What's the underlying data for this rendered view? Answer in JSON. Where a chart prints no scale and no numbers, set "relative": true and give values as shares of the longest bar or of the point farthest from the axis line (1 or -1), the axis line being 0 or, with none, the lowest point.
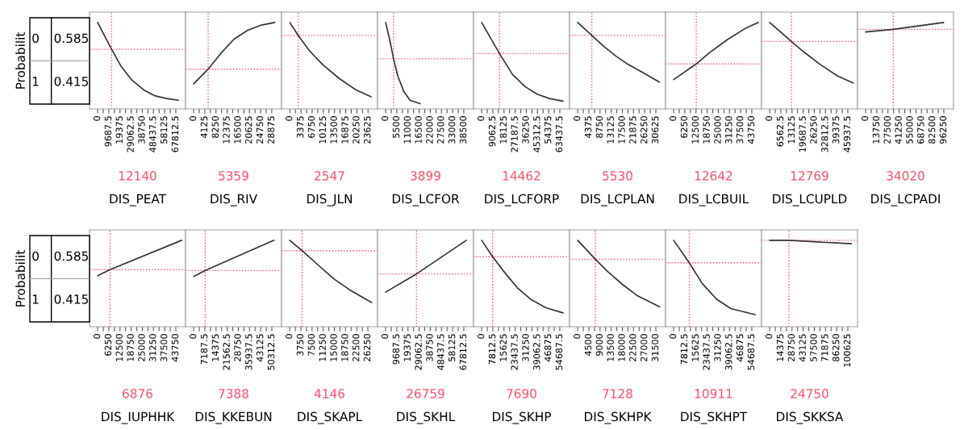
{
  "chart_data": [
    {
      "type": "other",
      "ylabel": "Probabilit",
      "annotations": [
        "0",
        "1",
        "0.585",
        "0.415"
      ]
    },
    {
      "type": "line",
      "xlabel": "DIS_PEAT",
      "color": "#333333",
      "x": [
        0,
        12140,
        20000,
        30000,
        40000,
        50000,
        60000,
        70000
      ],
      "values": [
        1,
        0.69,
        0.5,
        0.33,
        0.22,
        0.15,
        0.12,
        0.1
      ],
      "relative": true,
      "xlim": [
        -7000,
        76250
      ],
      "xticks": [
        0,
        {
          "value": 4843.75,
          "label": null
        },
        9687.5,
        {
          "value": 14531.25,
          "label": null
        },
        19375,
        {
          "value": 24218.75,
          "label": null
        },
        29062.5,
        {
          "value": 33906.25,
          "label": null
        },
        38750,
        {
          "value": 43593.75,
          "label": null
        },
        48437.5,
        {
          "value": 53281.25,
          "label": null
        },
        58125,
        {
          "value": 62968.75,
          "label": null
        },
        67812.5
      ],
      "tick_labels": "x",
      "ref_lines": [
        {
          "axis": "x",
          "value": 12140,
          "label": "12140",
          "color": "#ff4d6a",
          "line_style": "dotted"
        },
        {
          "axis": "y",
          "value": 0.69,
          "color": "#ff4d6a",
          "line_style": "dotted"
        }
      ]
    },
    {
      "type": "line",
      "xlabel": "DIS_RIV",
      "color": "#333333",
      "x": [
        0,
        5359,
        10000,
        15000,
        20000,
        25000,
        30000
      ],
      "values": [
        0.29,
        0.46,
        0.64,
        0.81,
        0.91,
        0.97,
        1
      ],
      "relative": true,
      "xlim": [
        -3000,
        32500
      ],
      "xticks": [
        0,
        {
          "value": 2062.5,
          "label": null
        },
        4125,
        {
          "value": 6187.5,
          "label": null
        },
        8250,
        {
          "value": 10312.5,
          "label": null
        },
        12375,
        {
          "value": 14437.5,
          "label": null
        },
        16500,
        {
          "value": 18562.5,
          "label": null
        },
        20625,
        {
          "value": 22687.5,
          "label": null
        },
        24750,
        {
          "value": 26812.5,
          "label": null
        },
        28875
      ],
      "tick_labels": "x",
      "ref_lines": [
        {
          "axis": "x",
          "value": 5359,
          "label": "5359",
          "color": "#ff4d6a",
          "line_style": "dotted"
        },
        {
          "axis": "y",
          "value": 0.46,
          "color": "#ff4d6a",
          "line_style": "dotted"
        }
      ]
    },
    {
      "type": "line",
      "xlabel": "DIS_JLN",
      "color": "#333333",
      "x": [
        0,
        2547,
        6000,
        10000,
        15000,
        20000,
        24600
      ],
      "values": [
        1,
        0.85,
        0.67,
        0.51,
        0.35,
        0.22,
        0.14
      ],
      "relative": true,
      "xlim": [
        -2500,
        26500
      ],
      "xticks": [
        0,
        {
          "value": 1687.5,
          "label": null
        },
        3375,
        {
          "value": 5062.5,
          "label": null
        },
        6750,
        {
          "value": 8437.5,
          "label": null
        },
        10125,
        {
          "value": 11812.5,
          "label": null
        },
        13500,
        {
          "value": 15187.5,
          "label": null
        },
        16875,
        {
          "value": 18562.5,
          "label": null
        },
        20250,
        {
          "value": 21937.5,
          "label": null
        },
        23625
      ],
      "tick_labels": "x",
      "ref_lines": [
        {
          "axis": "x",
          "value": 2547,
          "label": "2547",
          "color": "#ff4d6a",
          "line_style": "dotted"
        },
        {
          "axis": "y",
          "value": 0.85,
          "color": "#ff4d6a",
          "line_style": "dotted"
        }
      ]
    },
    {
      "type": "line",
      "xlabel": "DIS_LCFOR",
      "color": "#333333",
      "x": [
        0,
        2000,
        3899,
        6000,
        9000,
        12000,
        17000
      ],
      "values": [
        1,
        0.8,
        0.58,
        0.38,
        0.2,
        0.1,
        0.06
      ],
      "relative": true,
      "xlim": [
        -4000,
        43300
      ],
      "xticks": [
        0,
        {
          "value": 2750,
          "label": null
        },
        5500,
        {
          "value": 8250,
          "label": null
        },
        11000,
        {
          "value": 13750,
          "label": null
        },
        16500,
        {
          "value": 19250,
          "label": null
        },
        22000,
        {
          "value": 24750,
          "label": null
        },
        27500,
        {
          "value": 30250,
          "label": null
        },
        33000,
        {
          "value": 35750,
          "label": null
        },
        38500
      ],
      "tick_labels": "x",
      "ref_lines": [
        {
          "axis": "x",
          "value": 3899,
          "label": "3899",
          "color": "#ff4d6a",
          "line_style": "dotted"
        },
        {
          "axis": "y",
          "value": 0.58,
          "color": "#ff4d6a",
          "line_style": "dotted"
        }
      ]
    },
    {
      "type": "line",
      "xlabel": "DIS_LCFORP",
      "color": "#333333",
      "x": [
        0,
        14462,
        25000,
        35000,
        45000,
        55000,
        66000
      ],
      "values": [
        1,
        0.64,
        0.4,
        0.26,
        0.17,
        0.12,
        0.09
      ],
      "relative": true,
      "xlim": [
        -6600,
        71300
      ],
      "xticks": [
        0,
        {
          "value": 4531.25,
          "label": null
        },
        9062.5,
        {
          "value": 13593.75,
          "label": null
        },
        18125,
        {
          "value": 22656.25,
          "label": null
        },
        27187.5,
        {
          "value": 31718.75,
          "label": null
        },
        36250,
        {
          "value": 40781.25,
          "label": null
        },
        45312.5,
        {
          "value": 49843.75,
          "label": null
        },
        54375,
        {
          "value": 58906.25,
          "label": null
        },
        63437.5
      ],
      "tick_labels": "x",
      "ref_lines": [
        {
          "axis": "x",
          "value": 14462,
          "label": "14462",
          "color": "#ff4d6a",
          "line_style": "dotted"
        },
        {
          "axis": "y",
          "value": 0.64,
          "color": "#ff4d6a",
          "line_style": "dotted"
        }
      ]
    },
    {
      "type": "line",
      "xlabel": "DIS_LCPLAN",
      "color": "#333333",
      "x": [
        0,
        5530,
        10000,
        15000,
        20000,
        25000,
        32000
      ],
      "values": [
        1,
        0.85,
        0.73,
        0.61,
        0.51,
        0.43,
        0.31
      ],
      "relative": true,
      "xlim": [
        -3200,
        34400
      ],
      "xticks": [
        0,
        {
          "value": 2187.5,
          "label": null
        },
        4375,
        {
          "value": 6562.5,
          "label": null
        },
        8750,
        {
          "value": 10937.5,
          "label": null
        },
        13125,
        {
          "value": 15312.5,
          "label": null
        },
        17500,
        {
          "value": 19687.5,
          "label": null
        },
        21875,
        {
          "value": 24062.5,
          "label": null
        },
        26250,
        {
          "value": 28437.5,
          "label": null
        },
        30625
      ],
      "tick_labels": "x",
      "ref_lines": [
        {
          "axis": "x",
          "value": 5530,
          "label": "5530",
          "color": "#ff4d6a",
          "line_style": "dotted"
        },
        {
          "axis": "y",
          "value": 0.85,
          "color": "#ff4d6a",
          "line_style": "dotted"
        }
      ]
    },
    {
      "type": "line",
      "xlabel": "DIS_LCBUIL",
      "color": "#333333",
      "x": [
        0,
        12642,
        20000,
        30000,
        40000,
        47500
      ],
      "values": [
        0.34,
        0.52,
        0.65,
        0.8,
        0.93,
        1
      ],
      "relative": true,
      "xlim": [
        -4550,
        49200
      ],
      "xticks": [
        0,
        {
          "value": 3125,
          "label": null
        },
        6250,
        {
          "value": 9375,
          "label": null
        },
        12500,
        {
          "value": 15625,
          "label": null
        },
        18750,
        {
          "value": 21875,
          "label": null
        },
        25000,
        {
          "value": 28125,
          "label": null
        },
        31250,
        {
          "value": 34375,
          "label": null
        },
        37500,
        {
          "value": 40625,
          "label": null
        },
        43750
      ],
      "tick_labels": "x",
      "ref_lines": [
        {
          "axis": "x",
          "value": 12642,
          "label": "12642",
          "color": "#ff4d6a",
          "line_style": "dotted"
        },
        {
          "axis": "y",
          "value": 0.52,
          "color": "#ff4d6a",
          "line_style": "dotted"
        }
      ]
    },
    {
      "type": "line",
      "xlabel": "DIS_LCUPLD",
      "color": "#333333",
      "x": [
        0,
        12769,
        20000,
        30000,
        40000,
        49000
      ],
      "values": [
        1,
        0.78,
        0.66,
        0.51,
        0.38,
        0.3
      ],
      "relative": true,
      "xlim": [
        -4800,
        51650
      ],
      "xticks": [
        0,
        {
          "value": 3281.25,
          "label": null
        },
        6562.5,
        {
          "value": 9843.75,
          "label": null
        },
        13125,
        {
          "value": 16406.25,
          "label": null
        },
        19687.5,
        {
          "value": 22968.75,
          "label": null
        },
        26250,
        {
          "value": 29531.25,
          "label": null
        },
        32812.5,
        {
          "value": 36093.75,
          "label": null
        },
        39375,
        {
          "value": 42656.25,
          "label": null
        },
        45937.5
      ],
      "tick_labels": "x",
      "ref_lines": [
        {
          "axis": "x",
          "value": 12769,
          "label": "12769",
          "color": "#ff4d6a",
          "line_style": "dotted"
        },
        {
          "axis": "y",
          "value": 0.78,
          "color": "#ff4d6a",
          "line_style": "dotted"
        }
      ]
    },
    {
      "type": "line",
      "xlabel": "DIS_LCPADI",
      "color": "#333333",
      "x": [
        0,
        34020,
        96000
      ],
      "values": [
        0.89,
        0.92,
        1
      ],
      "relative": true,
      "xlim": [
        -10000,
        108200
      ],
      "xticks": [
        0,
        {
          "value": 6875,
          "label": null
        },
        13750,
        {
          "value": 20625,
          "label": null
        },
        27500,
        {
          "value": 34375,
          "label": null
        },
        41250,
        {
          "value": 48125,
          "label": null
        },
        55000,
        {
          "value": 61875,
          "label": null
        },
        68750,
        {
          "value": 75625,
          "label": null
        },
        82500,
        {
          "value": 89375,
          "label": null
        },
        96250
      ],
      "tick_labels": "x",
      "ref_lines": [
        {
          "axis": "x",
          "value": 34020,
          "label": "34020",
          "color": "#ff4d6a",
          "line_style": "dotted"
        },
        {
          "axis": "y",
          "value": 0.92,
          "color": "#ff4d6a",
          "line_style": "dotted"
        }
      ]
    },
    {
      "type": "other",
      "ylabel": "Probabilit",
      "annotations": [
        "0",
        "1",
        "0.585",
        "0.415"
      ]
    },
    {
      "type": "line",
      "xlabel": "DIS_IUPHHK",
      "color": "#333333",
      "x": [
        0,
        6876,
        47000
      ],
      "values": [
        0.59,
        0.66,
        1
      ],
      "relative": true,
      "xlim": [
        -4550,
        49200
      ],
      "xticks": [
        0,
        {
          "value": 3125,
          "label": null
        },
        6250,
        {
          "value": 9375,
          "label": null
        },
        12500,
        {
          "value": 15625,
          "label": null
        },
        18750,
        {
          "value": 21875,
          "label": null
        },
        25000,
        {
          "value": 28125,
          "label": null
        },
        31250,
        {
          "value": 34375,
          "label": null
        },
        37500,
        {
          "value": 40625,
          "label": null
        },
        43750
      ],
      "tick_labels": "x",
      "ref_lines": [
        {
          "axis": "x",
          "value": 6876,
          "label": "6876",
          "color": "#ff4d6a",
          "line_style": "dotted"
        },
        {
          "axis": "y",
          "value": 0.66,
          "color": "#ff4d6a",
          "line_style": "dotted"
        }
      ]
    },
    {
      "type": "line",
      "xlabel": "DIS_KKEBUN",
      "color": "#333333",
      "x": [
        0,
        7388,
        51700
      ],
      "values": [
        0.58,
        0.65,
        1
      ],
      "relative": true,
      "xlim": [
        -5250,
        56550
      ],
      "xticks": [
        0,
        {
          "value": 3593.75,
          "label": null
        },
        7187.5,
        {
          "value": 10781.25,
          "label": null
        },
        14375,
        {
          "value": 17968.75,
          "label": null
        },
        21562.5,
        {
          "value": 25156.25,
          "label": null
        },
        28750,
        {
          "value": 32343.75,
          "label": null
        },
        35937.5,
        {
          "value": 39531.25,
          "label": null
        },
        43125,
        {
          "value": 46718.75,
          "label": null
        },
        50312.5
      ],
      "tick_labels": "x",
      "ref_lines": [
        {
          "axis": "x",
          "value": 7388,
          "label": "7388",
          "color": "#ff4d6a",
          "line_style": "dotted"
        },
        {
          "axis": "y",
          "value": 0.65,
          "color": "#ff4d6a",
          "line_style": "dotted"
        }
      ]
    },
    {
      "type": "line",
      "xlabel": "DIS_SKAPL",
      "color": "#333333",
      "x": [
        0,
        4146,
        10000,
        15000,
        20000,
        27500
      ],
      "values": [
        1,
        0.88,
        0.7,
        0.55,
        0.43,
        0.28
      ],
      "relative": true,
      "xlim": [
        -2750,
        29500
      ],
      "xticks": [
        0,
        {
          "value": 1875,
          "label": null
        },
        3750,
        {
          "value": 5625,
          "label": null
        },
        7500,
        {
          "value": 9375,
          "label": null
        },
        11250,
        {
          "value": 13125,
          "label": null
        },
        15000,
        {
          "value": 16875,
          "label": null
        },
        18750,
        {
          "value": 20625,
          "label": null
        },
        22500,
        {
          "value": 24375,
          "label": null
        },
        26250
      ],
      "tick_labels": "x",
      "ref_lines": [
        {
          "axis": "x",
          "value": 4146,
          "label": "4146",
          "color": "#ff4d6a",
          "line_style": "dotted"
        },
        {
          "axis": "y",
          "value": 0.88,
          "color": "#ff4d6a",
          "line_style": "dotted"
        }
      ]
    },
    {
      "type": "line",
      "xlabel": "DIS_SKHL",
      "color": "#333333",
      "x": [
        0,
        26759,
        50000,
        70000
      ],
      "values": [
        0.4,
        0.61,
        0.82,
        1
      ],
      "relative": true,
      "xlim": [
        -7000,
        76250
      ],
      "xticks": [
        0,
        {
          "value": 4843.75,
          "label": null
        },
        9687.5,
        {
          "value": 14531.25,
          "label": null
        },
        19375,
        {
          "value": 24218.75,
          "label": null
        },
        29062.5,
        {
          "value": 33906.25,
          "label": null
        },
        38750,
        {
          "value": 43593.75,
          "label": null
        },
        48437.5,
        {
          "value": 53281.25,
          "label": null
        },
        58125,
        {
          "value": 62968.75,
          "label": null
        },
        67812.5
      ],
      "tick_labels": "x",
      "ref_lines": [
        {
          "axis": "x",
          "value": 26759,
          "label": "26759",
          "color": "#ff4d6a",
          "line_style": "dotted"
        },
        {
          "axis": "y",
          "value": 0.61,
          "color": "#ff4d6a",
          "line_style": "dotted"
        }
      ]
    },
    {
      "type": "line",
      "xlabel": "DIS_SKHP",
      "color": "#333333",
      "x": [
        0,
        7690,
        15000,
        25000,
        35000,
        45000,
        57000
      ],
      "values": [
        1,
        0.81,
        0.65,
        0.45,
        0.31,
        0.22,
        0.16
      ],
      "relative": true,
      "xlim": [
        -5700,
        61500
      ],
      "xticks": [
        0,
        {
          "value": 3906.25,
          "label": null
        },
        7812.5,
        {
          "value": 11718.75,
          "label": null
        },
        15625,
        {
          "value": 19531.25,
          "label": null
        },
        23437.5,
        {
          "value": 27343.75,
          "label": null
        },
        31250,
        {
          "value": 35156.25,
          "label": null
        },
        39062.5,
        {
          "value": 42968.75,
          "label": null
        },
        46875,
        {
          "value": 50781.25,
          "label": null
        },
        54687.5
      ],
      "tick_labels": "x",
      "ref_lines": [
        {
          "axis": "x",
          "value": 7690,
          "label": "7690",
          "color": "#ff4d6a",
          "line_style": "dotted"
        },
        {
          "axis": "y",
          "value": 0.81,
          "color": "#ff4d6a",
          "line_style": "dotted"
        }
      ]
    },
    {
      "type": "line",
      "xlabel": "DIS_SKHPK",
      "color": "#333333",
      "x": [
        0,
        7128,
        12000,
        18000,
        24000,
        33000
      ],
      "values": [
        1,
        0.78,
        0.64,
        0.49,
        0.36,
        0.23
      ],
      "relative": true,
      "xlim": [
        -3300,
        35400
      ],
      "xticks": [
        0,
        {
          "value": 2250,
          "label": null
        },
        4500,
        {
          "value": 6750,
          "label": null
        },
        9000,
        {
          "value": 11250,
          "label": null
        },
        13500,
        {
          "value": 15750,
          "label": null
        },
        18000,
        {
          "value": 20250,
          "label": null
        },
        22500,
        {
          "value": 24750,
          "label": null
        },
        27000,
        {
          "value": 29250,
          "label": null
        },
        31500
      ],
      "tick_labels": "x",
      "ref_lines": [
        {
          "axis": "x",
          "value": 7128,
          "label": "7128",
          "color": "#ff4d6a",
          "line_style": "dotted"
        },
        {
          "axis": "y",
          "value": 0.78,
          "color": "#ff4d6a",
          "line_style": "dotted"
        }
      ]
    },
    {
      "type": "line",
      "xlabel": "DIS_SKHPT",
      "color": "#333333",
      "x": [
        0,
        10911,
        20000,
        30000,
        40000,
        57000
      ],
      "values": [
        1,
        0.74,
        0.5,
        0.32,
        0.21,
        0.14
      ],
      "relative": true,
      "xlim": [
        -5700,
        61500
      ],
      "xticks": [
        0,
        {
          "value": 3906.25,
          "label": null
        },
        7812.5,
        {
          "value": 11718.75,
          "label": null
        },
        15625,
        {
          "value": 19531.25,
          "label": null
        },
        23437.5,
        {
          "value": 27343.75,
          "label": null
        },
        31250,
        {
          "value": 35156.25,
          "label": null
        },
        39062.5,
        {
          "value": 42968.75,
          "label": null
        },
        46875,
        {
          "value": 50781.25,
          "label": null
        },
        54687.5
      ],
      "tick_labels": "x",
      "ref_lines": [
        {
          "axis": "x",
          "value": 10911,
          "label": "10911",
          "color": "#ff4d6a",
          "line_style": "dotted"
        },
        {
          "axis": "y",
          "value": 0.74,
          "color": "#ff4d6a",
          "line_style": "dotted"
        }
      ]
    },
    {
      "type": "line",
      "xlabel": "DIS_SKKSA",
      "color": "#333333",
      "x": [
        0,
        24750,
        105000
      ],
      "values": [
        1,
        1,
        0.96
      ],
      "relative": true,
      "xlim": [
        -10500,
        113100
      ],
      "xticks": [
        0,
        {
          "value": 7187.5,
          "label": null
        },
        14375,
        {
          "value": 21562.5,
          "label": null
        },
        28750,
        {
          "value": 35937.5,
          "label": null
        },
        43125,
        {
          "value": 50312.5,
          "label": null
        },
        57500,
        {
          "value": 64687.5,
          "label": null
        },
        71875,
        {
          "value": 79062.5,
          "label": null
        },
        86250,
        {
          "value": 93437.5,
          "label": null
        },
        100625
      ],
      "tick_labels": "x",
      "ref_lines": [
        {
          "axis": "x",
          "value": 24750,
          "label": "24750",
          "color": "#ff4d6a",
          "line_style": "dotted"
        },
        {
          "axis": "y",
          "value": 1,
          "color": "#ff4d6a",
          "line_style": "dotted"
        }
      ]
    }
  ]
}
